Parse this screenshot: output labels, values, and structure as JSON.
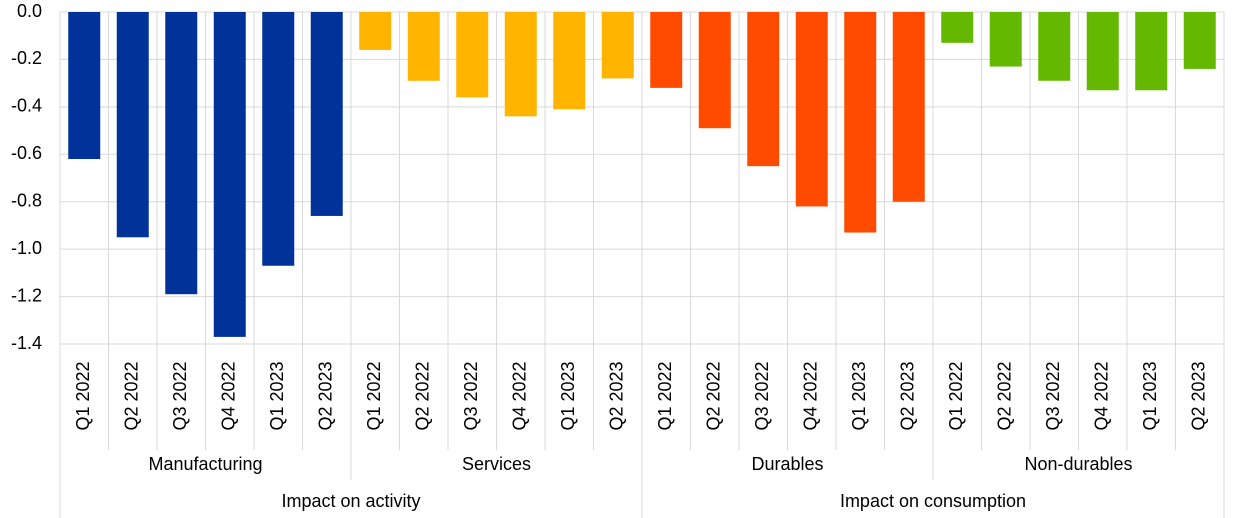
{
  "chart_data": {
    "type": "bar",
    "categories": [
      "Q1 2022",
      "Q2 2022",
      "Q3 2022",
      "Q4 2022",
      "Q1 2023",
      "Q2 2023"
    ],
    "groups": [
      {
        "label": "Impact on activity",
        "series": [
          {
            "name": "Manufacturing",
            "color": "#003299",
            "values": [
              -0.62,
              -0.95,
              -1.19,
              -1.37,
              -1.07,
              -0.86
            ]
          },
          {
            "name": "Services",
            "color": "#ffb400",
            "values": [
              -0.16,
              -0.29,
              -0.36,
              -0.44,
              -0.41,
              -0.28
            ]
          }
        ]
      },
      {
        "label": "Impact on consumption",
        "series": [
          {
            "name": "Durables",
            "color": "#ff4b00",
            "values": [
              -0.32,
              -0.49,
              -0.65,
              -0.82,
              -0.93,
              -0.8
            ]
          },
          {
            "name": "Non-durables",
            "color": "#65b800",
            "values": [
              -0.13,
              -0.23,
              -0.29,
              -0.33,
              -0.33,
              -0.24
            ]
          }
        ]
      }
    ],
    "ylim": [
      -1.4,
      0
    ],
    "yticks": [
      {
        "value": 0,
        "label": "0.0"
      },
      -0.2,
      -0.4,
      -0.6,
      -0.8,
      {
        "value": -1,
        "label": "-1.0"
      },
      -1.2,
      -1.4
    ],
    "grid": true
  }
}
